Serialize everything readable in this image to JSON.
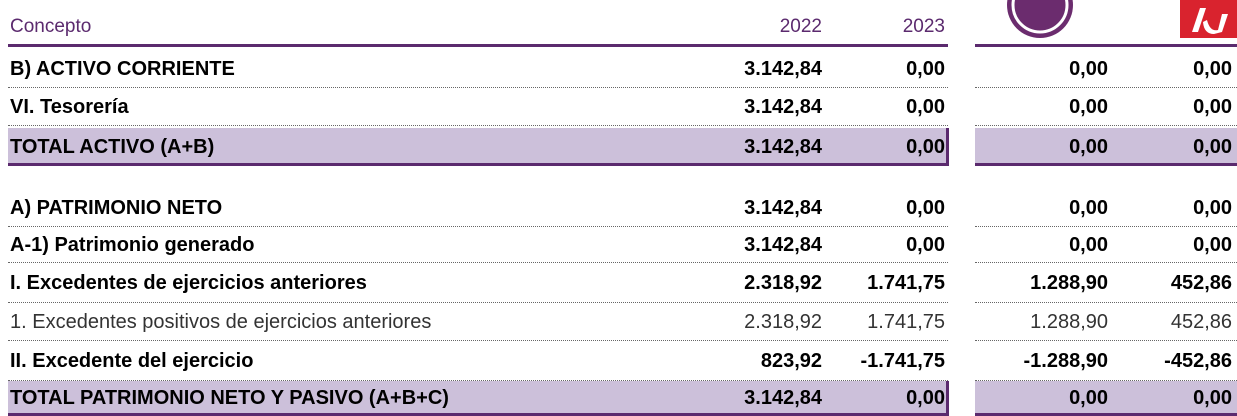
{
  "header": {
    "concept": "Concepto",
    "year_1": "2022",
    "year_2": "2023"
  },
  "table": {
    "rows": [
      [
        "B) ACTIVO CORRIENTE",
        "3.142,84",
        "0,00",
        "0,00",
        "0,00"
      ],
      [
        "VI. Tesorería",
        "3.142,84",
        "0,00",
        "0,00",
        "0,00"
      ],
      [
        "TOTAL ACTIVO (A+B)",
        "3.142,84",
        "0,00",
        "0,00",
        "0,00"
      ],
      [
        "A) PATRIMONIO NETO",
        "3.142,84",
        "0,00",
        "0,00",
        "0,00"
      ],
      [
        "A-1) Patrimonio generado",
        "3.142,84",
        "0,00",
        "0,00",
        "0,00"
      ],
      [
        "I. Excedentes de ejercicios anteriores",
        "2.318,92",
        "1.741,75",
        "1.288,90",
        "452,86"
      ],
      [
        "1. Excedentes positivos de ejercicios anteriores",
        "2.318,92",
        "1.741,75",
        "1.288,90",
        "452,86"
      ],
      [
        "II. Excedente del ejercicio",
        "823,92",
        "-1.741,75",
        "-1.288,90",
        "-452,86"
      ],
      [
        "TOTAL PATRIMONIO NETO Y PASIVO (A+B+C)",
        "3.142,84",
        "0,00",
        "0,00",
        "0,00"
      ]
    ]
  }
}
